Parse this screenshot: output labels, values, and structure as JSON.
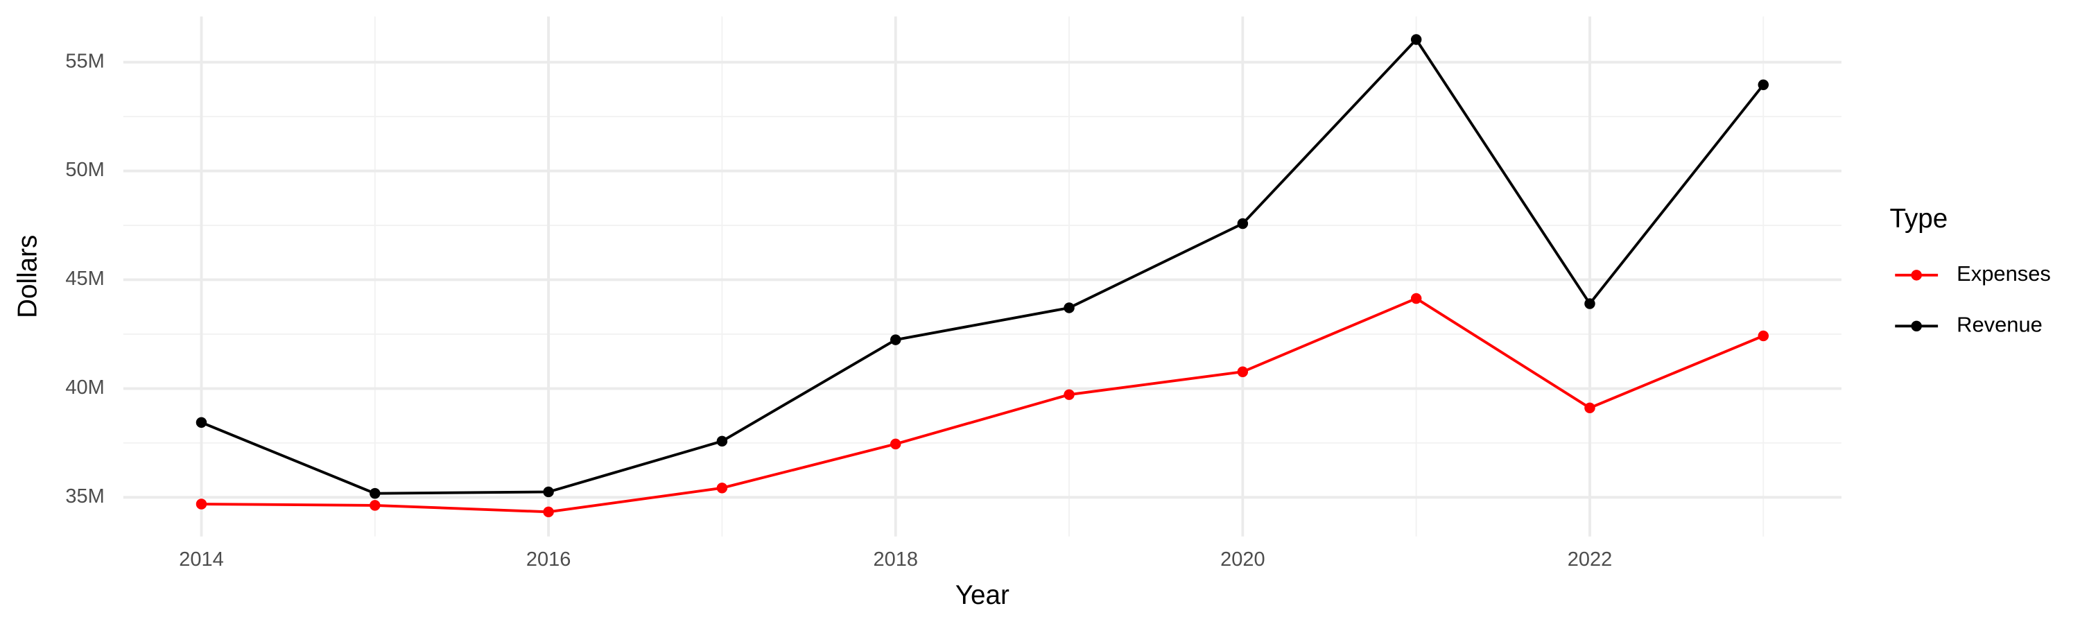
{
  "chart_data": {
    "type": "line",
    "x_label": "Year",
    "y_label": "Dollars",
    "x": [
      2014,
      2015,
      2016,
      2017,
      2018,
      2019,
      2020,
      2021,
      2022,
      2023
    ],
    "series": [
      {
        "name": "Expenses",
        "color": "#ff0000",
        "values": [
          34690000,
          34630000,
          34330000,
          35430000,
          37450000,
          39720000,
          40770000,
          44140000,
          39110000,
          42420000
        ]
      },
      {
        "name": "Revenue",
        "color": "#000000",
        "values": [
          38440000,
          35180000,
          35250000,
          37580000,
          42240000,
          43710000,
          47580000,
          56040000,
          43900000,
          53960000
        ]
      }
    ],
    "xlim": [
      2013.55,
      2023.45
    ],
    "xticks": [
      2014,
      2016,
      2018,
      2020,
      2022
    ],
    "minor_xticks": [
      2015,
      2017,
      2019,
      2021,
      2023
    ],
    "ylim": [
      33200000,
      57100000
    ],
    "yticks": [
      {
        "value": 35000000,
        "label": "35M"
      },
      {
        "value": 40000000,
        "label": "40M"
      },
      {
        "value": 45000000,
        "label": "45M"
      },
      {
        "value": 50000000,
        "label": "50M"
      },
      {
        "value": 55000000,
        "label": "55M"
      }
    ],
    "minor_yticks": [
      37500000,
      42500000,
      47500000,
      52500000
    ],
    "grid": true,
    "legend_title": "Type",
    "legend_position": "right"
  }
}
